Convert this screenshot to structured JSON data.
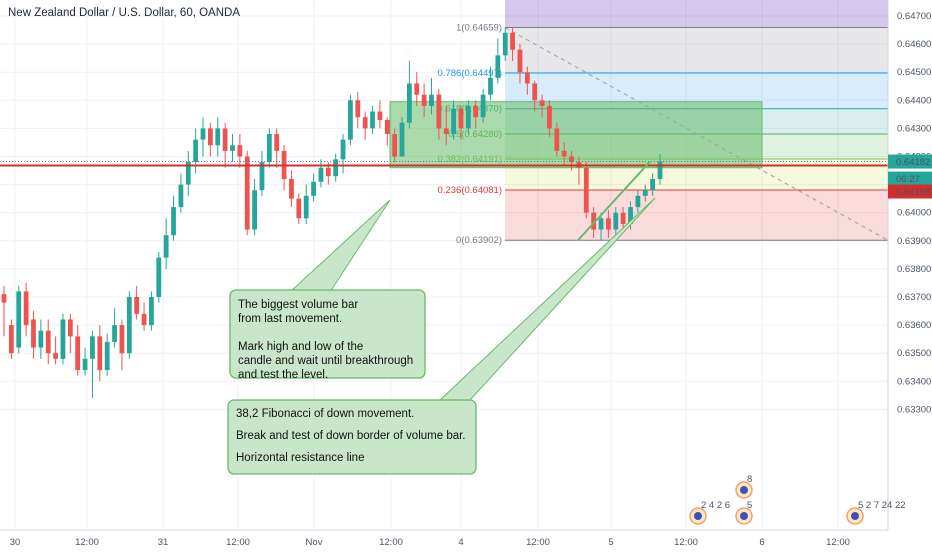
{
  "header": {
    "title": "New Zealand Dollar / U.S. Dollar, 60, OANDA"
  },
  "colors": {
    "bull": "#26a69a",
    "bear": "#ef5350",
    "grid": "#eef0f4",
    "resistance": "#d32f2f",
    "note_fill": "#c8e6c9",
    "note_stroke": "#66bb6a",
    "volume_box": "#66bb6a",
    "trend": "#66bb6a"
  },
  "chart_data": {
    "type": "candlestick",
    "yaxis": {
      "ticks": [
        "0.64700",
        "0.64600",
        "0.64500",
        "0.64400",
        "0.64300",
        "0.64200",
        "0.64100",
        "0.64000",
        "0.63900",
        "0.63800",
        "0.63700",
        "0.63600",
        "0.63500",
        "0.63400",
        "0.63300"
      ]
    },
    "xaxis": {
      "ticks": [
        "30",
        "12:00",
        "31",
        "12:00",
        "Nov",
        "12:00",
        "4",
        "12:00",
        "5",
        "12:00",
        "6",
        "12:00"
      ]
    },
    "price_labels": [
      {
        "value": "0.64182",
        "color": "#26a69a"
      },
      {
        "value": "06:27",
        "color": "#26a69a"
      },
      {
        "value": "0.64168",
        "color": "#d32f2f"
      }
    ],
    "fibonacci": [
      {
        "label": "1(0.64659)",
        "price": 0.64659,
        "color": "#787b86"
      },
      {
        "label": "0.786(0.64497)",
        "price": 0.64497,
        "color": "#2196f3"
      },
      {
        "label": "0.618(0.64370)",
        "price": 0.6437,
        "color": "#26a69a"
      },
      {
        "label": "0.5(0.64280)",
        "price": 0.6428,
        "color": "#4caf50"
      },
      {
        "label": "0.382(0.64191)",
        "price": 0.64191,
        "color": "#8bc34a"
      },
      {
        "label": "0.236(0.64081)",
        "price": 0.64081,
        "color": "#e53935"
      },
      {
        "label": "0(0.63902)",
        "price": 0.63902,
        "color": "#787b86"
      }
    ],
    "resistance_line": 0.64168,
    "candles": [
      [
        0.6371,
        0.6368,
        0.6374,
        0.6356
      ],
      [
        0.636,
        0.635,
        0.6362,
        0.6348
      ],
      [
        0.6352,
        0.6372,
        0.6374,
        0.635
      ],
      [
        0.6372,
        0.636,
        0.6375,
        0.6356
      ],
      [
        0.6362,
        0.6352,
        0.6365,
        0.6348
      ],
      [
        0.6352,
        0.6358,
        0.6362,
        0.6348
      ],
      [
        0.6358,
        0.635,
        0.6362,
        0.6346
      ],
      [
        0.635,
        0.6348,
        0.6356,
        0.6346
      ],
      [
        0.6348,
        0.6362,
        0.6364,
        0.6346
      ],
      [
        0.6362,
        0.6356,
        0.6364,
        0.635
      ],
      [
        0.6356,
        0.6344,
        0.636,
        0.6342
      ],
      [
        0.6344,
        0.6348,
        0.6352,
        0.6342
      ],
      [
        0.6348,
        0.6356,
        0.6358,
        0.6334
      ],
      [
        0.6356,
        0.6344,
        0.636,
        0.634
      ],
      [
        0.6344,
        0.6354,
        0.6357,
        0.6342
      ],
      [
        0.6354,
        0.636,
        0.6366,
        0.6352
      ],
      [
        0.636,
        0.635,
        0.6362,
        0.6344
      ],
      [
        0.635,
        0.637,
        0.6372,
        0.6348
      ],
      [
        0.637,
        0.6364,
        0.6374,
        0.6362
      ],
      [
        0.6364,
        0.636,
        0.6368,
        0.6358
      ],
      [
        0.636,
        0.637,
        0.6372,
        0.6358
      ],
      [
        0.637,
        0.6384,
        0.6386,
        0.6368
      ],
      [
        0.6384,
        0.6392,
        0.6398,
        0.638
      ],
      [
        0.6392,
        0.6402,
        0.6406,
        0.639
      ],
      [
        0.6402,
        0.641,
        0.6414,
        0.64
      ],
      [
        0.641,
        0.6418,
        0.6422,
        0.6406
      ],
      [
        0.6418,
        0.6426,
        0.643,
        0.6414
      ],
      [
        0.6426,
        0.643,
        0.6434,
        0.642
      ],
      [
        0.643,
        0.6424,
        0.6432,
        0.642
      ],
      [
        0.6424,
        0.643,
        0.6434,
        0.642
      ],
      [
        0.643,
        0.6422,
        0.6432,
        0.6416
      ],
      [
        0.6422,
        0.6424,
        0.6428,
        0.6418
      ],
      [
        0.6424,
        0.642,
        0.6428,
        0.6416
      ],
      [
        0.642,
        0.6394,
        0.6422,
        0.6392
      ],
      [
        0.6394,
        0.6408,
        0.6412,
        0.6392
      ],
      [
        0.6408,
        0.6418,
        0.6422,
        0.6406
      ],
      [
        0.6418,
        0.6428,
        0.643,
        0.6416
      ],
      [
        0.6428,
        0.6422,
        0.643,
        0.6416
      ],
      [
        0.6422,
        0.6412,
        0.6424,
        0.6408
      ],
      [
        0.6412,
        0.6405,
        0.6415,
        0.6402
      ],
      [
        0.6405,
        0.6398,
        0.6407,
        0.6396
      ],
      [
        0.6398,
        0.6406,
        0.641,
        0.6396
      ],
      [
        0.6406,
        0.6411,
        0.6414,
        0.6404
      ],
      [
        0.6411,
        0.6416,
        0.6419,
        0.6409
      ],
      [
        0.6416,
        0.6413,
        0.6418,
        0.641
      ],
      [
        0.6413,
        0.6419,
        0.6421,
        0.6411
      ],
      [
        0.6419,
        0.6426,
        0.6428,
        0.6414
      ],
      [
        0.6426,
        0.644,
        0.6442,
        0.6424
      ],
      [
        0.644,
        0.6434,
        0.6443,
        0.643
      ],
      [
        0.6434,
        0.643,
        0.6436,
        0.6426
      ],
      [
        0.643,
        0.6436,
        0.6438,
        0.6428
      ],
      [
        0.6436,
        0.6433,
        0.644,
        0.643
      ],
      [
        0.6433,
        0.6428,
        0.6434,
        0.6424
      ],
      [
        0.6428,
        0.642,
        0.643,
        0.6418
      ],
      [
        0.642,
        0.6432,
        0.6434,
        0.642
      ],
      [
        0.6432,
        0.6446,
        0.6454,
        0.643
      ],
      [
        0.6446,
        0.6442,
        0.645,
        0.6438
      ],
      [
        0.6442,
        0.6438,
        0.6446,
        0.6434
      ],
      [
        0.6438,
        0.6442,
        0.6448,
        0.6435
      ],
      [
        0.6442,
        0.643,
        0.6444,
        0.6426
      ],
      [
        0.643,
        0.6428,
        0.6438,
        0.6424
      ],
      [
        0.6428,
        0.6437,
        0.644,
        0.6426
      ],
      [
        0.6437,
        0.643,
        0.6438,
        0.6426
      ],
      [
        0.643,
        0.6438,
        0.644,
        0.6428
      ],
      [
        0.6438,
        0.6434,
        0.644,
        0.643
      ],
      [
        0.6434,
        0.6442,
        0.6444,
        0.6432
      ],
      [
        0.6442,
        0.6448,
        0.6452,
        0.644
      ],
      [
        0.6448,
        0.6456,
        0.6462,
        0.6446
      ],
      [
        0.6456,
        0.6464,
        0.64659,
        0.6454
      ],
      [
        0.6464,
        0.6458,
        0.64659,
        0.6454
      ],
      [
        0.6458,
        0.645,
        0.646,
        0.6446
      ],
      [
        0.645,
        0.6446,
        0.6452,
        0.6442
      ],
      [
        0.6446,
        0.644,
        0.6447,
        0.6436
      ],
      [
        0.644,
        0.6438,
        0.6442,
        0.6434
      ],
      [
        0.6438,
        0.643,
        0.644,
        0.6427
      ],
      [
        0.643,
        0.6422,
        0.6432,
        0.642
      ],
      [
        0.6422,
        0.642,
        0.6425,
        0.6417
      ],
      [
        0.642,
        0.6418,
        0.6422,
        0.6415
      ],
      [
        0.6418,
        0.6416,
        0.642,
        0.641
      ],
      [
        0.6416,
        0.64,
        0.6418,
        0.6398
      ],
      [
        0.64,
        0.6394,
        0.6402,
        0.6391
      ],
      [
        0.6394,
        0.6398,
        0.64,
        0.63902
      ],
      [
        0.6398,
        0.6394,
        0.6401,
        0.6391
      ],
      [
        0.6394,
        0.64,
        0.6402,
        0.6392
      ],
      [
        0.64,
        0.6396,
        0.6402,
        0.6393
      ],
      [
        0.6396,
        0.6402,
        0.6404,
        0.6394
      ],
      [
        0.6402,
        0.6406,
        0.6408,
        0.64
      ],
      [
        0.6406,
        0.6408,
        0.641,
        0.6404
      ],
      [
        0.6408,
        0.6412,
        0.6414,
        0.6406
      ],
      [
        0.6412,
        0.64182,
        0.6421,
        0.641
      ]
    ]
  },
  "annotations": {
    "note1": [
      "The biggest volume bar",
      " from last movement.",
      "",
      "Mark high and low of the",
      "candle and wait until breakthrough",
      "and test the level."
    ],
    "note2": [
      "38,2 Fibonacci of down movement.",
      "",
      "Break and test of down border of volume bar.",
      "",
      "Horizontal resistance line"
    ]
  },
  "events": [
    {
      "numbers": "2 4 2 6"
    },
    {
      "numbers": "8"
    },
    {
      "numbers": "5"
    },
    {
      "numbers": "5 2 7 24 22"
    }
  ]
}
